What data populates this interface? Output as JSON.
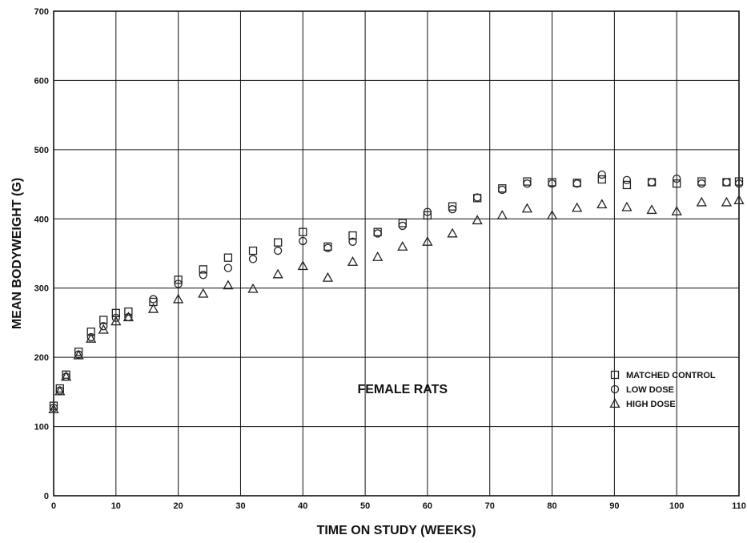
{
  "chart_data": {
    "type": "scatter",
    "xlabel": "TIME ON STUDY (WEEKS)",
    "ylabel": "MEAN BODYWEIGHT (G)",
    "xlim": [
      0,
      110
    ],
    "ylim": [
      0,
      700
    ],
    "xticks": [
      "0",
      "10",
      "20",
      "30",
      "40",
      "50",
      "60",
      "70",
      "80",
      "90",
      "100",
      "110"
    ],
    "yticks": [
      "0",
      "100",
      "200",
      "300",
      "400",
      "500",
      "600",
      "700"
    ],
    "grid": true,
    "annotation": "FEMALE RATS",
    "legend_position": "bottom-right",
    "series": [
      {
        "name": "MATCHED CONTROL",
        "marker": "square",
        "x": [
          0,
          1,
          2,
          4,
          6,
          8,
          10,
          12,
          16,
          20,
          24,
          28,
          32,
          36,
          40,
          44,
          48,
          52,
          56,
          60,
          64,
          68,
          72,
          76,
          80,
          84,
          88,
          92,
          96,
          100,
          104,
          108,
          110
        ],
        "y": [
          130,
          155,
          175,
          208,
          237,
          254,
          264,
          266,
          280,
          312,
          327,
          344,
          354,
          366,
          381,
          360,
          376,
          381,
          394,
          405,
          418,
          430,
          444,
          454,
          453,
          452,
          457,
          449,
          453,
          451,
          454,
          453,
          454
        ]
      },
      {
        "name": "LOW DOSE",
        "marker": "circle",
        "x": [
          0,
          1,
          2,
          4,
          6,
          8,
          10,
          12,
          16,
          20,
          24,
          28,
          32,
          36,
          40,
          44,
          48,
          52,
          56,
          60,
          64,
          68,
          72,
          76,
          80,
          84,
          88,
          92,
          96,
          100,
          104,
          108,
          110
        ],
        "y": [
          127,
          152,
          172,
          204,
          229,
          245,
          257,
          258,
          284,
          306,
          319,
          329,
          342,
          354,
          368,
          358,
          367,
          379,
          390,
          410,
          414,
          431,
          442,
          451,
          451,
          451,
          464,
          456,
          453,
          458,
          451,
          453,
          451
        ]
      },
      {
        "name": "HIGH DOSE",
        "marker": "triangle",
        "x": [
          0,
          1,
          2,
          4,
          6,
          8,
          10,
          12,
          16,
          20,
          24,
          28,
          32,
          36,
          40,
          44,
          48,
          52,
          56,
          60,
          64,
          68,
          72,
          76,
          80,
          84,
          88,
          92,
          96,
          100,
          104,
          108,
          110
        ],
        "y": [
          125,
          151,
          172,
          203,
          227,
          240,
          252,
          258,
          270,
          284,
          292,
          304,
          299,
          320,
          332,
          315,
          338,
          345,
          360,
          367,
          379,
          398,
          405,
          415,
          405,
          416,
          421,
          417,
          413,
          411,
          424,
          424,
          427
        ]
      }
    ]
  },
  "colors": {
    "ink": "#111111",
    "background": "#ffffff"
  }
}
